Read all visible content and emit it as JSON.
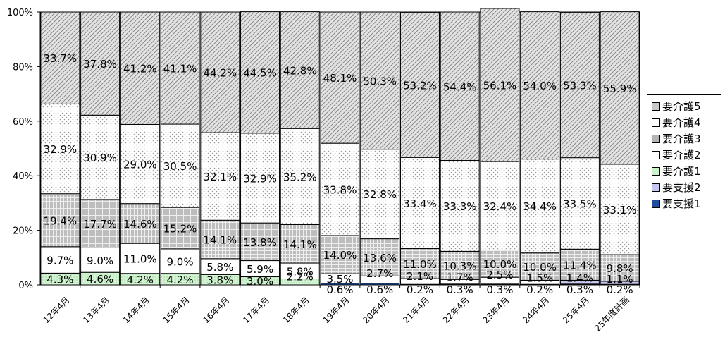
{
  "chart_data": {
    "type": "bar",
    "stacked": true,
    "ylim": [
      0,
      100
    ],
    "y_ticks": [
      "0%",
      "20%",
      "40%",
      "60%",
      "80%",
      "100%"
    ],
    "categories": [
      "12年4月",
      "13年4月",
      "14年4月",
      "15年4月",
      "16年4月",
      "17年4月",
      "18年4月",
      "19年4月",
      "20年4月",
      "21年4月",
      "22年4月",
      "23年4月",
      "24年4月",
      "25年4月",
      "25年度計画"
    ],
    "series": [
      {
        "name": "要支援1",
        "values": [
          0,
          0,
          0,
          0,
          0,
          0,
          0,
          0.6,
          0.6,
          0.2,
          0.3,
          0.3,
          0.2,
          0.3,
          0.2
        ],
        "labels": [
          "",
          "",
          "",
          "",
          "",
          "",
          "",
          "0.6%",
          "0.6%",
          "0.2%",
          "0.3%",
          "0.3%",
          "0.2%",
          "0.3%",
          "0.2%"
        ],
        "color": "#1f4e9e"
      },
      {
        "name": "要支援2",
        "values": [
          0,
          0,
          0,
          0,
          0,
          0,
          0,
          0,
          0,
          0,
          0,
          0,
          0,
          1.4,
          1.1
        ],
        "labels": [
          "",
          "",
          "",
          "",
          "",
          "",
          "",
          "",
          "",
          "",
          "",
          "",
          "",
          "1.4%",
          "1.1%"
        ],
        "color": "#c6c6ee"
      },
      {
        "name": "要介護1",
        "values": [
          4.3,
          4.6,
          4.2,
          4.2,
          3.8,
          3.0,
          2.2,
          0,
          0,
          0,
          0,
          0,
          0,
          0,
          0
        ],
        "labels": [
          "4.3%",
          "4.6%",
          "4.2%",
          "4.2%",
          "3.8%",
          "3.0%",
          "2.2%",
          "",
          "",
          "",
          "",
          "",
          "",
          "",
          ""
        ],
        "color": "#ccf2cc"
      },
      {
        "name": "要介護2",
        "values": [
          9.7,
          9.0,
          11.0,
          9.0,
          5.8,
          5.9,
          5.8,
          3.5,
          2.7,
          2.1,
          1.7,
          2.5,
          1.5,
          0,
          0
        ],
        "labels": [
          "9.7%",
          "9.0%",
          "11.0%",
          "9.0%",
          "5.8%",
          "5.9%",
          "5.8%",
          "3.5%",
          "2.7%",
          "2.1%",
          "1.7%",
          "2.5%",
          "1.5%",
          "",
          ""
        ],
        "color": "#ffffff"
      },
      {
        "name": "要介護3",
        "values": [
          19.4,
          17.7,
          14.6,
          15.2,
          14.1,
          13.8,
          14.1,
          14.0,
          13.6,
          11.0,
          10.3,
          10.0,
          10.0,
          11.4,
          9.8
        ],
        "labels": [
          "19.4%",
          "17.7%",
          "14.6%",
          "15.2%",
          "14.1%",
          "13.8%",
          "14.1%",
          "14.0%",
          "13.6%",
          "11.0%",
          "10.3%",
          "10.0%",
          "10.0%",
          "11.4%",
          "9.8%"
        ],
        "color": "#b4b4b4"
      },
      {
        "name": "要介護4",
        "values": [
          32.9,
          30.9,
          29.0,
          30.5,
          32.1,
          32.9,
          35.2,
          33.8,
          32.8,
          33.4,
          33.3,
          32.4,
          34.4,
          33.5,
          33.1
        ],
        "labels": [
          "32.9%",
          "30.9%",
          "29.0%",
          "30.5%",
          "32.1%",
          "32.9%",
          "35.2%",
          "33.8%",
          "32.8%",
          "33.4%",
          "33.3%",
          "32.4%",
          "34.4%",
          "33.5%",
          "33.1%"
        ],
        "color": "#ffffff"
      },
      {
        "name": "要介護5",
        "values": [
          33.7,
          37.8,
          41.2,
          41.1,
          44.2,
          44.5,
          42.8,
          48.1,
          50.3,
          53.2,
          54.4,
          56.1,
          54.0,
          53.3,
          55.9
        ],
        "labels": [
          "33.7%",
          "37.8%",
          "41.2%",
          "41.1%",
          "44.2%",
          "44.5%",
          "42.8%",
          "48.1%",
          "50.3%",
          "53.2%",
          "54.4%",
          "56.1%",
          "54.0%",
          "53.3%",
          "55.9%"
        ],
        "color": "#c8c8c8"
      }
    ],
    "legend": {
      "placement": "right",
      "order": [
        "要介護5",
        "要介護4",
        "要介護3",
        "要介護2",
        "要介護1",
        "要支援2",
        "要支援1"
      ]
    }
  }
}
